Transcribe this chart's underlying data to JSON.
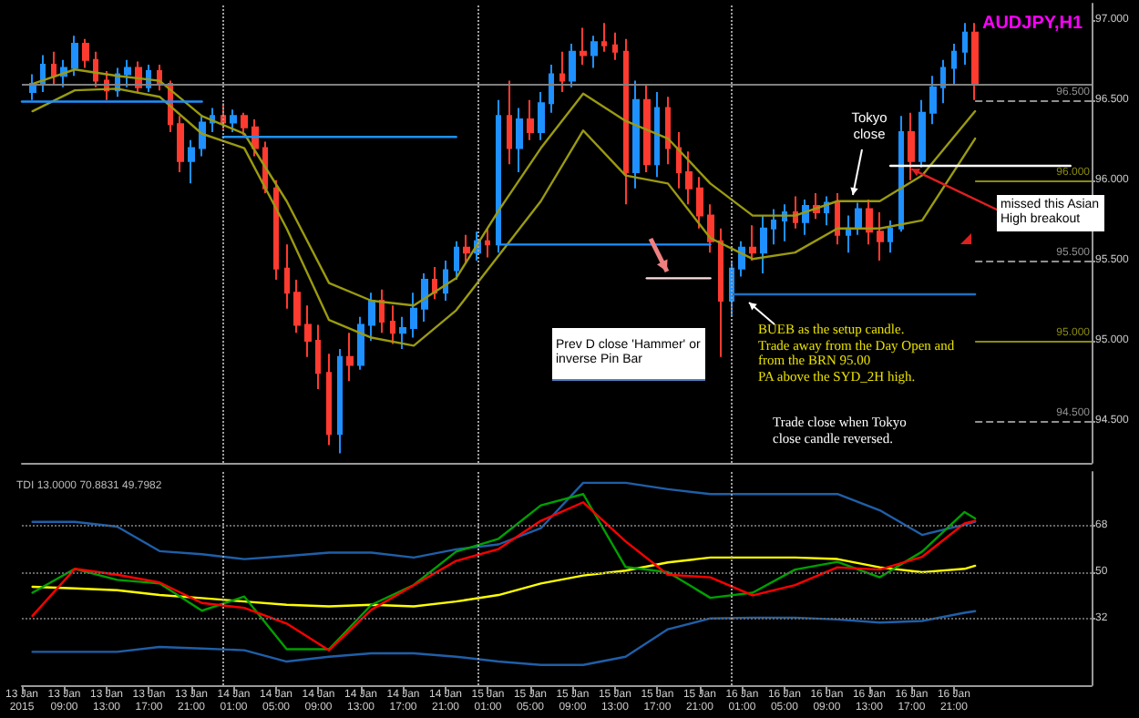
{
  "chart_data": [
    {
      "type": "candlestick",
      "title": "AUDJPY,H1",
      "tick_labels": "y",
      "xlim": [
        "2015-01-13T05:00",
        "2015-01-17T10:00"
      ],
      "ylim": [
        94.24,
        97.1
      ],
      "yticks": [
        {
          "value": 94.5,
          "label": "94.500"
        },
        {
          "value": 95,
          "label": "95.000"
        },
        {
          "value": 95.5,
          "label": "95.500"
        },
        {
          "value": 96,
          "label": "96.000"
        },
        {
          "value": 96.5,
          "label": "96.500"
        },
        {
          "value": 97,
          "label": "97.000"
        }
      ],
      "x": [
        "2015-01-13T06:00",
        "2015-01-13T07:00",
        "2015-01-13T08:00",
        "2015-01-13T09:00",
        "2015-01-13T10:00",
        "2015-01-13T11:00",
        "2015-01-13T12:00",
        "2015-01-13T13:00",
        "2015-01-13T14:00",
        "2015-01-13T15:00",
        "2015-01-13T16:00",
        "2015-01-13T17:00",
        "2015-01-13T18:00",
        "2015-01-13T19:00",
        "2015-01-13T20:00",
        "2015-01-13T21:00",
        "2015-01-13T22:00",
        "2015-01-13T23:00",
        "2015-01-14T00:00",
        "2015-01-14T01:00",
        "2015-01-14T02:00",
        "2015-01-14T03:00",
        "2015-01-14T04:00",
        "2015-01-14T05:00",
        "2015-01-14T06:00",
        "2015-01-14T07:00",
        "2015-01-14T08:00",
        "2015-01-14T09:00",
        "2015-01-14T10:00",
        "2015-01-14T11:00",
        "2015-01-14T12:00",
        "2015-01-14T13:00",
        "2015-01-14T14:00",
        "2015-01-14T15:00",
        "2015-01-14T16:00",
        "2015-01-14T17:00",
        "2015-01-14T18:00",
        "2015-01-14T19:00",
        "2015-01-14T20:00",
        "2015-01-14T21:00",
        "2015-01-14T22:00",
        "2015-01-14T23:00",
        "2015-01-15T00:00",
        "2015-01-15T01:00",
        "2015-01-15T02:00",
        "2015-01-15T03:00",
        "2015-01-15T04:00",
        "2015-01-15T05:00",
        "2015-01-15T06:00",
        "2015-01-15T07:00",
        "2015-01-15T08:00",
        "2015-01-15T09:00",
        "2015-01-15T10:00",
        "2015-01-15T11:00",
        "2015-01-15T12:00",
        "2015-01-15T13:00",
        "2015-01-15T14:00",
        "2015-01-15T15:00",
        "2015-01-15T16:00",
        "2015-01-15T17:00",
        "2015-01-15T18:00",
        "2015-01-15T19:00",
        "2015-01-15T20:00",
        "2015-01-15T21:00",
        "2015-01-15T22:00",
        "2015-01-15T23:00",
        "2015-01-16T00:00",
        "2015-01-16T01:00",
        "2015-01-16T02:00",
        "2015-01-16T03:00",
        "2015-01-16T04:00",
        "2015-01-16T05:00",
        "2015-01-16T06:00",
        "2015-01-16T07:00",
        "2015-01-16T08:00",
        "2015-01-16T09:00",
        "2015-01-16T10:00",
        "2015-01-16T11:00",
        "2015-01-16T12:00",
        "2015-01-16T13:00",
        "2015-01-16T14:00",
        "2015-01-16T15:00",
        "2015-01-16T16:00",
        "2015-01-16T17:00",
        "2015-01-16T18:00",
        "2015-01-16T19:00",
        "2015-01-16T20:00",
        "2015-01-16T21:00",
        "2015-01-16T22:00",
        "2015-01-16T23:00"
      ],
      "series": [
        {
          "ohlc": [
            [
              96.55,
              96.66,
              96.5,
              96.6
            ],
            [
              96.6,
              96.78,
              96.55,
              96.72
            ],
            [
              96.72,
              96.8,
              96.6,
              96.65
            ],
            [
              96.65,
              96.75,
              96.58,
              96.7
            ],
            [
              96.7,
              96.9,
              96.65,
              96.85
            ],
            [
              96.85,
              96.88,
              96.7,
              96.75
            ],
            [
              96.75,
              96.8,
              96.58,
              96.62
            ],
            [
              96.62,
              96.68,
              96.5,
              96.56
            ],
            [
              96.56,
              96.7,
              96.52,
              96.66
            ],
            [
              96.66,
              96.75,
              96.58,
              96.7
            ],
            [
              96.7,
              96.74,
              96.55,
              96.58
            ],
            [
              96.58,
              96.72,
              96.55,
              96.68
            ],
            [
              96.68,
              96.72,
              96.56,
              96.6
            ],
            [
              96.6,
              96.62,
              96.3,
              96.35
            ],
            [
              96.35,
              96.4,
              96.05,
              96.12
            ],
            [
              96.12,
              96.25,
              95.98,
              96.2
            ],
            [
              96.2,
              96.4,
              96.15,
              96.36
            ],
            [
              96.36,
              96.45,
              96.3,
              96.4
            ],
            [
              96.4,
              96.48,
              96.32,
              96.36
            ],
            [
              96.36,
              96.44,
              96.3,
              96.4
            ],
            [
              96.4,
              96.42,
              96.28,
              96.33
            ],
            [
              96.33,
              96.38,
              96.15,
              96.2
            ],
            [
              96.2,
              96.24,
              95.92,
              95.95
            ],
            [
              95.95,
              96.0,
              95.38,
              95.45
            ],
            [
              95.45,
              95.6,
              95.2,
              95.3
            ],
            [
              95.3,
              95.38,
              95.05,
              95.1
            ],
            [
              95.1,
              95.22,
              94.9,
              95.0
            ],
            [
              95.0,
              95.1,
              94.7,
              94.8
            ],
            [
              94.8,
              94.92,
              94.35,
              94.42
            ],
            [
              94.42,
              94.95,
              94.3,
              94.9
            ],
            [
              94.9,
              95.05,
              94.75,
              94.85
            ],
            [
              94.85,
              95.15,
              94.82,
              95.1
            ],
            [
              95.1,
              95.3,
              95.0,
              95.25
            ],
            [
              95.25,
              95.32,
              95.05,
              95.12
            ],
            [
              95.12,
              95.22,
              94.98,
              95.05
            ],
            [
              95.05,
              95.15,
              94.95,
              95.08
            ],
            [
              95.08,
              95.3,
              95.02,
              95.2
            ],
            [
              95.2,
              95.42,
              95.12,
              95.38
            ],
            [
              95.38,
              95.46,
              95.26,
              95.3
            ],
            [
              95.3,
              95.5,
              95.25,
              95.44
            ],
            [
              95.44,
              95.62,
              95.38,
              95.58
            ],
            [
              95.58,
              95.66,
              95.48,
              95.55
            ],
            [
              95.55,
              95.68,
              95.5,
              95.62
            ],
            [
              95.62,
              95.7,
              95.52,
              95.6
            ],
            [
              95.6,
              96.5,
              95.55,
              96.4
            ],
            [
              96.4,
              96.62,
              96.1,
              96.2
            ],
            [
              96.2,
              96.45,
              96.05,
              96.38
            ],
            [
              96.38,
              96.5,
              96.25,
              96.3
            ],
            [
              96.3,
              96.55,
              96.25,
              96.48
            ],
            [
              96.48,
              96.72,
              96.42,
              96.66
            ],
            [
              96.66,
              96.8,
              96.55,
              96.62
            ],
            [
              96.62,
              96.85,
              96.58,
              96.8
            ],
            [
              96.8,
              96.95,
              96.72,
              96.78
            ],
            [
              96.78,
              96.9,
              96.7,
              96.86
            ],
            [
              96.86,
              96.98,
              96.8,
              96.84
            ],
            [
              96.84,
              96.92,
              96.75,
              96.8
            ],
            [
              96.8,
              96.88,
              95.85,
              96.05
            ],
            [
              96.05,
              96.62,
              95.95,
              96.5
            ],
            [
              96.5,
              96.6,
              96.05,
              96.1
            ],
            [
              96.1,
              96.55,
              96.02,
              96.45
            ],
            [
              96.45,
              96.52,
              96.1,
              96.2
            ],
            [
              96.2,
              96.3,
              95.95,
              96.05
            ],
            [
              96.05,
              96.18,
              95.85,
              95.95
            ],
            [
              95.95,
              96.02,
              95.7,
              95.78
            ],
            [
              95.78,
              95.85,
              95.55,
              95.62
            ],
            [
              95.62,
              95.7,
              94.9,
              95.25
            ],
            [
              95.25,
              95.5,
              95.15,
              95.45
            ],
            [
              95.45,
              95.62,
              95.4,
              95.58
            ],
            [
              95.58,
              95.72,
              95.5,
              95.55
            ],
            [
              95.55,
              95.78,
              95.42,
              95.7
            ],
            [
              95.7,
              95.82,
              95.6,
              95.75
            ],
            [
              95.75,
              95.85,
              95.62,
              95.8
            ],
            [
              95.8,
              95.9,
              95.7,
              95.74
            ],
            [
              95.74,
              95.88,
              95.66,
              95.84
            ],
            [
              95.84,
              95.92,
              95.76,
              95.8
            ],
            [
              95.8,
              95.9,
              95.72,
              95.86
            ],
            [
              95.86,
              95.92,
              95.6,
              95.66
            ],
            [
              95.66,
              95.78,
              95.55,
              95.7
            ],
            [
              95.7,
              95.86,
              95.66,
              95.82
            ],
            [
              95.82,
              95.88,
              95.6,
              95.68
            ],
            [
              95.68,
              95.8,
              95.5,
              95.62
            ],
            [
              95.62,
              95.75,
              95.55,
              95.7
            ],
            [
              95.7,
              96.4,
              95.68,
              96.3
            ],
            [
              96.3,
              96.42,
              96.0,
              96.12
            ],
            [
              96.12,
              96.5,
              96.08,
              96.42
            ],
            [
              96.42,
              96.65,
              96.35,
              96.58
            ],
            [
              96.58,
              96.75,
              96.48,
              96.7
            ],
            [
              96.7,
              96.85,
              96.6,
              96.8
            ],
            [
              96.8,
              96.98,
              96.72,
              96.92
            ],
            [
              96.92,
              96.98,
              96.5,
              96.6
            ]
          ]
        },
        {
          "type": "line",
          "color": "#9a9a10",
          "x": [
            "2015-01-13T06:00",
            "2015-01-13T10:00",
            "2015-01-13T14:00",
            "2015-01-13T18:00",
            "2015-01-13T22:00",
            "2015-01-14T02:00",
            "2015-01-14T06:00",
            "2015-01-14T10:00",
            "2015-01-14T14:00",
            "2015-01-14T18:00",
            "2015-01-14T22:00",
            "2015-01-15T02:00",
            "2015-01-15T06:00",
            "2015-01-15T10:00",
            "2015-01-15T14:00",
            "2015-01-15T18:00",
            "2015-01-15T22:00",
            "2015-01-16T02:00",
            "2015-01-16T06:00",
            "2015-01-16T10:00",
            "2015-01-16T14:00",
            "2015-01-16T18:00",
            "2015-01-16T23:00"
          ],
          "values": [
            96.6,
            96.69,
            96.65,
            96.62,
            96.4,
            96.29,
            95.87,
            95.36,
            95.25,
            95.22,
            95.39,
            95.81,
            96.2,
            96.54,
            96.37,
            96.26,
            95.98,
            95.78,
            95.78,
            95.87,
            95.87,
            96.03,
            96.43
          ]
        },
        {
          "type": "line",
          "color": "#9a9a10",
          "x": [
            "2015-01-13T06:00",
            "2015-01-13T10:00",
            "2015-01-13T14:00",
            "2015-01-13T18:00",
            "2015-01-13T22:00",
            "2015-01-14T02:00",
            "2015-01-14T06:00",
            "2015-01-14T10:00",
            "2015-01-14T14:00",
            "2015-01-14T18:00",
            "2015-01-14T22:00",
            "2015-01-15T02:00",
            "2015-01-15T06:00",
            "2015-01-15T10:00",
            "2015-01-15T14:00",
            "2015-01-15T18:00",
            "2015-01-15T22:00",
            "2015-01-16T02:00",
            "2015-01-16T06:00",
            "2015-01-16T10:00",
            "2015-01-16T14:00",
            "2015-01-16T18:00",
            "2015-01-16T23:00"
          ],
          "values": [
            96.43,
            96.56,
            96.57,
            96.52,
            96.29,
            96.2,
            95.7,
            95.13,
            95.02,
            94.97,
            95.19,
            95.53,
            95.87,
            96.31,
            96.03,
            95.98,
            95.64,
            95.51,
            95.55,
            95.7,
            95.7,
            95.75,
            96.26
          ]
        },
        {
          "type": "line",
          "color": "#1e90ff",
          "x": [
            "2015-01-13T05:00",
            "2015-01-13T22:00"
          ],
          "values": [
            96.49,
            96.49
          ]
        },
        {
          "type": "line",
          "color": "#1e90ff",
          "x": [
            "2015-01-14T00:00",
            "2015-01-14T22:00"
          ],
          "values": [
            96.27,
            96.27
          ]
        },
        {
          "type": "line",
          "color": "#1e90ff",
          "x": [
            "2015-01-15T02:00",
            "2015-01-15T22:00"
          ],
          "values": [
            95.6,
            95.6
          ]
        },
        {
          "type": "line",
          "color": "#1e6fc0",
          "x": [
            "2015-01-16T00:00",
            "2015-01-16T23:00"
          ],
          "values": [
            95.29,
            95.29
          ]
        },
        {
          "type": "line",
          "color": "#ffe0e0",
          "x": [
            "2015-01-15T16:00",
            "2015-01-15T22:00"
          ],
          "values": [
            95.39,
            95.39
          ]
        },
        {
          "type": "line",
          "color": "#ffffff",
          "x": [
            "2015-01-16T15:00",
            "2015-01-17T08:00"
          ],
          "values": [
            96.09,
            96.09
          ]
        }
      ],
      "ref_lines": [
        {
          "axis": "y",
          "value": 96.6,
          "color": "#808080",
          "line_style": "solid"
        },
        {
          "axis": "y",
          "value": 96.5,
          "label": "96.500",
          "color": "#909090",
          "line_style": "dashed"
        },
        {
          "axis": "y",
          "value": 96,
          "label": "96.000",
          "color": "#8a8a10",
          "line_style": "solid"
        },
        {
          "axis": "y",
          "value": 95.5,
          "label": "95.500",
          "color": "#909090",
          "line_style": "dashed"
        },
        {
          "axis": "y",
          "value": 95,
          "label": "95.000",
          "color": "#8a8a10",
          "line_style": "solid"
        },
        {
          "axis": "y",
          "value": 94.5,
          "label": "94.500",
          "color": "#909090",
          "line_style": "dashed"
        },
        {
          "axis": "x",
          "value": "2015-01-14T00:00",
          "color": "#a0a0a0",
          "line_style": "dotted"
        },
        {
          "axis": "x",
          "value": "2015-01-15T00:00",
          "color": "#a0a0a0",
          "line_style": "dotted"
        },
        {
          "axis": "x",
          "value": "2015-01-16T00:00",
          "color": "#a0a0a0",
          "line_style": "dotted"
        }
      ],
      "annotations": [
        "Tokyo close",
        {
          "text": "missed this Asian High breakout",
          "x": "2015-01-16T17:00",
          "y": 96.07
        },
        "Prev D close 'Hammer' or inverse Pin Bar",
        "BUEB as the setup candle.\nTrade away from the Day Open and\nfrom the BRN 95.00\nPA above the SYD_2H high.",
        "Trade close when Tokyo\nclose candle reversed."
      ]
    },
    {
      "type": "line",
      "title": "TDI 13.0000 70.8831 49.7982",
      "grid": "y",
      "xlim": [
        "2015-01-13T05:00",
        "2015-01-17T10:00"
      ],
      "ylim": [
        6,
        89
      ],
      "yticks": [
        32,
        50,
        68
      ],
      "xticks": [
        {
          "value": "2015-01-13T05:00",
          "label": "13 Jan 2015"
        },
        {
          "value": "2015-01-13T09:00",
          "label": "13 Jan 09:00"
        },
        {
          "value": "2015-01-13T13:00",
          "label": "13 Jan 13:00"
        },
        {
          "value": "2015-01-13T17:00",
          "label": "13 Jan 17:00"
        },
        {
          "value": "2015-01-13T21:00",
          "label": "13 Jan 21:00"
        },
        {
          "value": "2015-01-14T01:00",
          "label": "14 Jan 01:00"
        },
        {
          "value": "2015-01-14T05:00",
          "label": "14 Jan 05:00"
        },
        {
          "value": "2015-01-14T09:00",
          "label": "14 Jan 09:00"
        },
        {
          "value": "2015-01-14T13:00",
          "label": "14 Jan 13:00"
        },
        {
          "value": "2015-01-14T17:00",
          "label": "14 Jan 17:00"
        },
        {
          "value": "2015-01-14T21:00",
          "label": "14 Jan 21:00"
        },
        {
          "value": "2015-01-15T01:00",
          "label": "15 Jan 01:00"
        },
        {
          "value": "2015-01-15T05:00",
          "label": "15 Jan 05:00"
        },
        {
          "value": "2015-01-15T09:00",
          "label": "15 Jan 09:00"
        },
        {
          "value": "2015-01-15T13:00",
          "label": "15 Jan 13:00"
        },
        {
          "value": "2015-01-15T17:00",
          "label": "15 Jan 17:00"
        },
        {
          "value": "2015-01-15T21:00",
          "label": "15 Jan 21:00"
        },
        {
          "value": "2015-01-16T01:00",
          "label": "16 Jan 01:00"
        },
        {
          "value": "2015-01-16T05:00",
          "label": "16 Jan 05:00"
        },
        {
          "value": "2015-01-16T09:00",
          "label": "16 Jan 09:00"
        },
        {
          "value": "2015-01-16T13:00",
          "label": "16 Jan 13:00"
        },
        {
          "value": "2015-01-16T17:00",
          "label": "16 Jan 17:00"
        },
        {
          "value": "2015-01-16T21:00",
          "label": "16 Jan 21:00"
        }
      ],
      "x": [
        "2015-01-13T06:00",
        "2015-01-13T10:00",
        "2015-01-13T14:00",
        "2015-01-13T18:00",
        "2015-01-13T22:00",
        "2015-01-14T02:00",
        "2015-01-14T06:00",
        "2015-01-14T10:00",
        "2015-01-14T14:00",
        "2015-01-14T18:00",
        "2015-01-14T22:00",
        "2015-01-15T02:00",
        "2015-01-15T06:00",
        "2015-01-15T10:00",
        "2015-01-15T14:00",
        "2015-01-15T18:00",
        "2015-01-15T22:00",
        "2015-01-16T02:00",
        "2015-01-16T06:00",
        "2015-01-16T10:00",
        "2015-01-16T14:00",
        "2015-01-16T18:00",
        "2015-01-16T22:00",
        "2015-01-16T23:00"
      ],
      "series": [
        {
          "color": "#1f5fa8",
          "values": [
            69.6,
            69.6,
            67.7,
            58.2,
            57.0,
            55.1,
            56.3,
            57.6,
            57.6,
            55.7,
            58.9,
            60.8,
            67.1,
            84.8,
            84.8,
            82.3,
            80.4,
            80.4,
            80.4,
            80.4,
            74.1,
            64.5,
            68.5,
            69.6
          ]
        },
        {
          "color": "#1f5fa8",
          "values": [
            19.0,
            19.0,
            19.0,
            20.9,
            20.3,
            19.6,
            15.2,
            17.1,
            18.4,
            18.4,
            17.1,
            15.2,
            13.9,
            13.9,
            17.1,
            27.8,
            32.0,
            32.3,
            32.3,
            31.6,
            30.4,
            31.0,
            34.2,
            34.8
          ]
        },
        {
          "color": "#ffff00",
          "values": [
            44.3,
            43.7,
            43.0,
            41.1,
            39.9,
            38.6,
            37.3,
            36.7,
            37.3,
            36.7,
            38.6,
            41.1,
            45.6,
            48.7,
            50.6,
            53.8,
            55.7,
            55.7,
            55.7,
            55.1,
            51.9,
            50.0,
            51.3,
            52.5
          ]
        },
        {
          "color": "#00a000",
          "values": [
            42,
            51.3,
            47,
            45.6,
            35,
            40.5,
            20,
            20,
            37.3,
            45,
            58,
            63,
            76,
            80.4,
            52,
            50,
            40,
            42,
            51,
            54,
            48,
            58,
            73.4,
            70.9
          ]
        },
        {
          "color": "#ff0000",
          "values": [
            33,
            51.3,
            49,
            46,
            38,
            36.1,
            30,
            19.6,
            35.4,
            44.9,
            54.4,
            59,
            70,
            77.2,
            62,
            49,
            48,
            41,
            45,
            51.9,
            51,
            56,
            69.0,
            70
          ]
        }
      ],
      "ref_lines": [
        {
          "axis": "x",
          "value": "2015-01-14T00:00",
          "color": "#a0a0a0",
          "line_style": "dotted"
        },
        {
          "axis": "x",
          "value": "2015-01-15T00:00",
          "color": "#a0a0a0",
          "line_style": "dotted"
        },
        {
          "axis": "x",
          "value": "2015-01-16T00:00",
          "color": "#a0a0a0",
          "line_style": "dotted"
        }
      ]
    }
  ]
}
